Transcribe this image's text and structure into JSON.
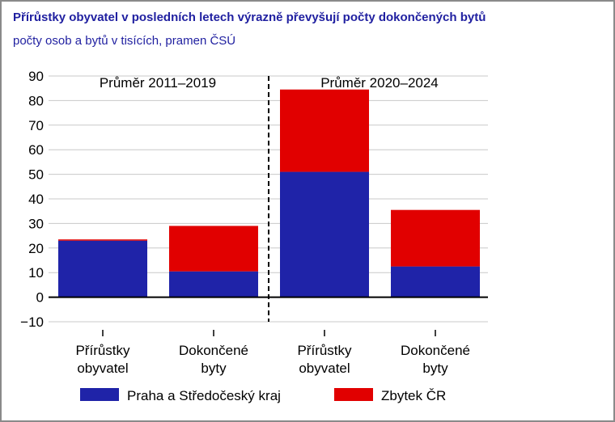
{
  "title": "Přírůstky obyvatel v posledních letech výrazně převyšují počty dokončených bytů",
  "subtitle": "počty osob a bytů v tisících, pramen ČSÚ",
  "chart_data": {
    "type": "bar",
    "stacked": true,
    "categories": [
      [
        "Přírůstky",
        "obyvatel"
      ],
      [
        "Dokončené",
        "byty"
      ],
      [
        "Přírůstky",
        "obyvatel"
      ],
      [
        "Dokončené",
        "byty"
      ]
    ],
    "series": [
      {
        "name": "Praha a Středočeský kraj",
        "color": "#1f23a8",
        "values": [
          23,
          10.5,
          51,
          12.5
        ]
      },
      {
        "name": "Zbytek ČR",
        "color": "#e10000",
        "values": [
          0.5,
          18.5,
          33.5,
          23
        ]
      }
    ],
    "ylim": [
      -10,
      90
    ],
    "yticks": [
      90,
      80,
      70,
      60,
      50,
      40,
      30,
      20,
      10,
      0,
      -10
    ],
    "grid": true,
    "annotations": [
      "Průměr 2011–2019",
      "Průměr 2020–2024"
    ],
    "divider": "dashed line between 2011–2019 and 2020–2024 groups",
    "legend_position": "bottom"
  }
}
